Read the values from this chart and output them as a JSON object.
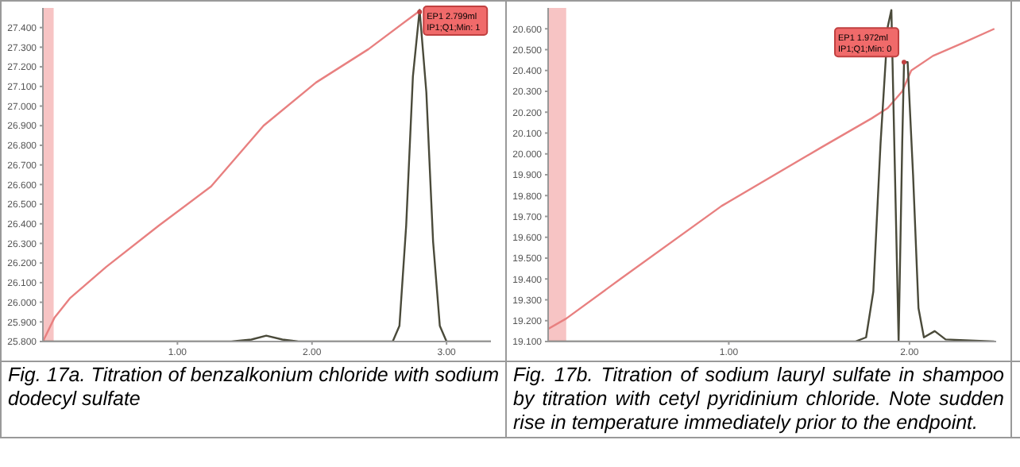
{
  "chart_data": [
    {
      "type": "line",
      "xlim": [
        0,
        3.33
      ],
      "xticks": [
        {
          "value": 1,
          "label": "1.00"
        },
        {
          "value": 2,
          "label": "2.00"
        },
        {
          "value": 3,
          "label": "3.00"
        }
      ],
      "ylim": [
        25.8,
        27.5
      ],
      "yticks": [
        {
          "value": 25.8,
          "label": "25.800"
        },
        {
          "value": 25.9,
          "label": "25.900"
        },
        {
          "value": 26,
          "label": "26.000"
        },
        {
          "value": 26.1,
          "label": "26.100"
        },
        {
          "value": 26.2,
          "label": "26.200"
        },
        {
          "value": 26.3,
          "label": "26.300"
        },
        {
          "value": 26.4,
          "label": "26.400"
        },
        {
          "value": 26.5,
          "label": "26.500"
        },
        {
          "value": 26.6,
          "label": "26.600"
        },
        {
          "value": 26.7,
          "label": "26.700"
        },
        {
          "value": 26.8,
          "label": "26.800"
        },
        {
          "value": 26.9,
          "label": "26.900"
        },
        {
          "value": 27,
          "label": "27.000"
        },
        {
          "value": 27.1,
          "label": "27.100"
        },
        {
          "value": 27.2,
          "label": "27.200"
        },
        {
          "value": 27.3,
          "label": "27.300"
        },
        {
          "value": 27.4,
          "label": "27.400"
        }
      ],
      "grid": false,
      "legend": false,
      "marker": "none",
      "bands": [
        {
          "axis": "x",
          "from": 0,
          "to": 0.08,
          "color": "#f7c4c4"
        }
      ],
      "series": [
        {
          "color": "#e88080",
          "x": [
            0,
            0.085,
            0.2,
            0.47,
            0.86,
            1.25,
            1.64,
            2.03,
            2.42,
            2.79
          ],
          "values": [
            25.8,
            25.92,
            26.02,
            26.18,
            26.39,
            26.59,
            26.9,
            27.12,
            27.29,
            27.48
          ]
        },
        {
          "color": "#4a4a3a",
          "x": [
            0,
            1.4,
            1.55,
            1.66,
            1.78,
            1.9,
            2.6,
            2.65,
            2.7,
            2.75,
            2.8,
            2.85,
            2.9,
            2.95,
            3.0,
            3.33
          ],
          "values": [
            25.8,
            25.8,
            25.81,
            25.83,
            25.81,
            25.8,
            25.8,
            25.88,
            26.39,
            27.15,
            27.49,
            27.07,
            26.31,
            25.88,
            25.8,
            25.8
          ]
        }
      ],
      "annotations": [
        {
          "text": "EP1 2.799ml\nIP1;Q1;Min: 1",
          "x": 2.8,
          "y": 27.48
        },
        "Fig. 17a. Titration of benzalkonium chloride with sodium dodecyl sulfate"
      ]
    },
    {
      "type": "line",
      "xlim": [
        0,
        2.48
      ],
      "xticks": [
        {
          "value": 1,
          "label": "1.00"
        },
        {
          "value": 2,
          "label": "2.00"
        }
      ],
      "ylim": [
        19.1,
        20.7
      ],
      "yticks": [
        {
          "value": 19.1,
          "label": "19.100"
        },
        {
          "value": 19.2,
          "label": "19.200"
        },
        {
          "value": 19.3,
          "label": "19.300"
        },
        {
          "value": 19.4,
          "label": "19.400"
        },
        {
          "value": 19.5,
          "label": "19.500"
        },
        {
          "value": 19.6,
          "label": "19.600"
        },
        {
          "value": 19.7,
          "label": "19.700"
        },
        {
          "value": 19.8,
          "label": "19.800"
        },
        {
          "value": 19.9,
          "label": "19.900"
        },
        {
          "value": 20,
          "label": "20.000"
        },
        {
          "value": 20.1,
          "label": "20.100"
        },
        {
          "value": 20.2,
          "label": "20.200"
        },
        {
          "value": 20.3,
          "label": "20.300"
        },
        {
          "value": 20.4,
          "label": "20.400"
        },
        {
          "value": 20.5,
          "label": "20.500"
        },
        {
          "value": 20.6,
          "label": "20.600"
        }
      ],
      "grid": false,
      "legend": false,
      "marker": "none",
      "bands": [
        {
          "axis": "x",
          "from": 0,
          "to": 0.1,
          "color": "#f7c4c4"
        }
      ],
      "series": [
        {
          "color": "#e88080",
          "x": [
            0,
            0.1,
            0.4,
            0.96,
            1.51,
            1.79,
            1.88,
            1.96,
            2.01,
            2.13,
            2.29,
            2.47
          ],
          "values": [
            19.16,
            19.21,
            19.4,
            19.75,
            20.03,
            20.17,
            20.22,
            20.3,
            20.4,
            20.47,
            20.53,
            20.6
          ]
        },
        {
          "color": "#4a4a3a",
          "x": [
            0,
            1.7,
            1.76,
            1.8,
            1.84,
            1.88,
            1.9,
            1.92,
            1.94,
            1.96,
            1.97,
            1.99,
            2.02,
            2.05,
            2.08,
            2.14,
            2.2,
            2.47
          ],
          "values": [
            19.1,
            19.1,
            19.12,
            19.34,
            20.05,
            20.61,
            20.69,
            19.9,
            19.1,
            20.05,
            20.44,
            20.44,
            19.9,
            19.26,
            19.12,
            19.15,
            19.11,
            19.1
          ]
        }
      ],
      "annotations": [
        {
          "text": "EP1 1.972ml\nIP1;Q1;Min: 0",
          "x": 1.97,
          "y": 20.44
        },
        "Fig. 17b. Titration of sodium lauryl sulfate in shampoo by titration with cetyl pyridinium chloride. Note sudden rise in temperature immediately prior to the endpoint."
      ]
    }
  ]
}
